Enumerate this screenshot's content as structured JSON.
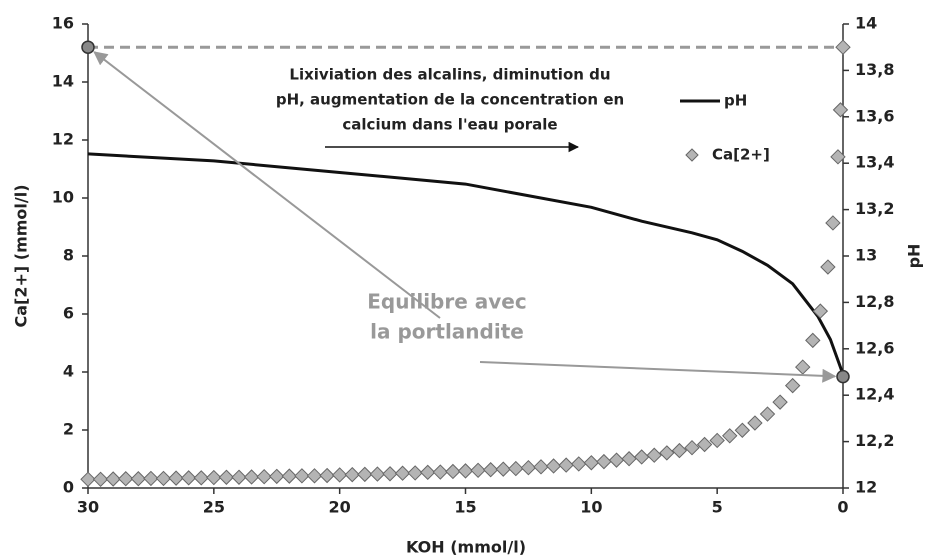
{
  "chart_data": {
    "type": "line_scatter",
    "xlabel": "KOH (mmol/l)",
    "ylabel": "Ca[2+] (mmol/l)",
    "y2label": "pH",
    "xlim": [
      30,
      0
    ],
    "xticks": [
      30,
      25,
      20,
      15,
      10,
      5,
      0
    ],
    "ylim": [
      0,
      16
    ],
    "yticks": [
      0,
      2,
      4,
      6,
      8,
      10,
      12,
      14,
      16
    ],
    "y2lim": [
      12,
      14
    ],
    "y2ticks": [
      12,
      {
        "value": 12.2,
        "label": "12,2"
      },
      {
        "value": 12.4,
        "label": "12,4"
      },
      {
        "value": 12.6,
        "label": "12,6"
      },
      {
        "value": 12.8,
        "label": "12,8"
      },
      13,
      {
        "value": 13.2,
        "label": "13,2"
      },
      {
        "value": 13.4,
        "label": "13,4"
      },
      {
        "value": 13.6,
        "label": "13,6"
      },
      {
        "value": 13.8,
        "label": "13,8"
      },
      14
    ],
    "grid": false,
    "series": [
      {
        "name": "pH",
        "kind": "line",
        "axis": "y2",
        "color": "#111111",
        "x": [
          30,
          25,
          20,
          15,
          10,
          8,
          6,
          5,
          4,
          3,
          2,
          1.5,
          1,
          0.5,
          0.2,
          0
        ],
        "values": [
          13.44,
          13.41,
          13.36,
          13.31,
          13.21,
          13.15,
          13.1,
          13.07,
          13.02,
          12.96,
          12.88,
          12.81,
          12.74,
          12.64,
          12.55,
          12.49
        ]
      },
      {
        "name": "Ca[2+]",
        "kind": "scatter",
        "axis": "y",
        "color": "#b4b4b4",
        "x": [
          30,
          29.5,
          29,
          28.5,
          28,
          27.5,
          27,
          26.5,
          26,
          25.5,
          25,
          24.5,
          24,
          23.5,
          23,
          22.5,
          22,
          21.5,
          21,
          20.5,
          20,
          19.5,
          19,
          18.5,
          18,
          17.5,
          17,
          16.5,
          16,
          15.5,
          15,
          14.5,
          14,
          13.5,
          13,
          12.5,
          12,
          11.5,
          11,
          10.5,
          10,
          9.5,
          9,
          8.5,
          8,
          7.5,
          7,
          6.5,
          6,
          5.5,
          5,
          4.5,
          4,
          3.5,
          3,
          2.5,
          2,
          1.6,
          1.2,
          0.9,
          0.6,
          0.4,
          0.2,
          0.1,
          0
        ],
        "values": [
          0.3,
          0.3,
          0.31,
          0.32,
          0.32,
          0.33,
          0.33,
          0.34,
          0.35,
          0.35,
          0.36,
          0.37,
          0.37,
          0.38,
          0.39,
          0.4,
          0.41,
          0.42,
          0.42,
          0.43,
          0.45,
          0.46,
          0.47,
          0.48,
          0.49,
          0.51,
          0.52,
          0.54,
          0.55,
          0.57,
          0.59,
          0.61,
          0.63,
          0.65,
          0.67,
          0.7,
          0.73,
          0.76,
          0.79,
          0.83,
          0.87,
          0.91,
          0.96,
          1.01,
          1.07,
          1.13,
          1.21,
          1.29,
          1.39,
          1.5,
          1.64,
          1.8,
          1.99,
          2.24,
          2.55,
          2.96,
          3.53,
          4.17,
          5.09,
          6.1,
          7.62,
          9.14,
          11.42,
          13.04,
          15.2
        ]
      }
    ],
    "legend": "top-right",
    "reference_line": {
      "y": 15.2,
      "color": "#999999"
    },
    "markers": [
      {
        "x": 30,
        "y": 15.2
      },
      {
        "x": 0,
        "y2": 12.48
      }
    ],
    "annotations": [
      {
        "lines": [
          "Lixiviation des alcalins, diminution du",
          "pH, augmentation de la concentration en",
          "calcium dans l'eau porale"
        ]
      },
      {
        "lines": [
          "Equilibre avec",
          "la portlandite"
        ]
      }
    ]
  }
}
